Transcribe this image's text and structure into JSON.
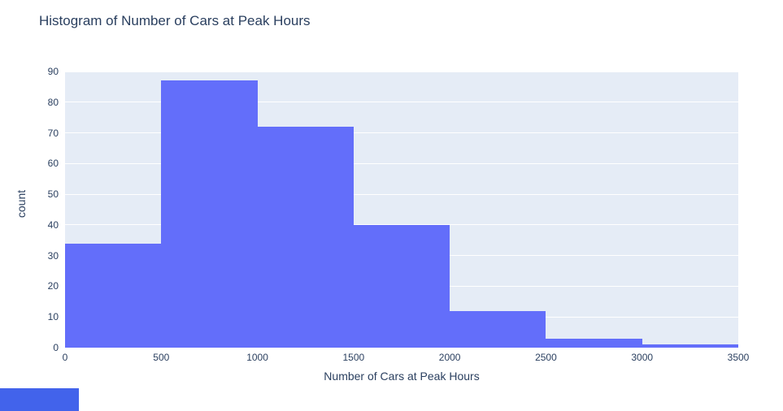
{
  "chart_data": {
    "type": "bar",
    "subtype": "histogram",
    "title": "Histogram of Number of Cars at Peak Hours",
    "xlabel": "Number of Cars at Peak Hours",
    "ylabel": "count",
    "bin_edges": [
      0,
      500,
      1000,
      1500,
      2000,
      2500,
      3000,
      3500
    ],
    "values": [
      34,
      87,
      72,
      40,
      12,
      3,
      1
    ],
    "xlim": [
      0,
      3500
    ],
    "ylim": [
      0,
      90
    ],
    "x_ticks": [
      0,
      500,
      1000,
      1500,
      2000,
      2500,
      3000,
      3500
    ],
    "y_ticks": [
      0,
      10,
      20,
      30,
      40,
      50,
      60,
      70,
      80,
      90
    ],
    "grid": "horizontal",
    "legend_position": "none",
    "colors": {
      "bar": "#636EFA",
      "plot_background": "#E5ECF6",
      "gridline": "#FFFFFF",
      "text": "#2A3F5F",
      "page_background": "#FFFFFF",
      "corner_button": "#4263EB"
    }
  }
}
